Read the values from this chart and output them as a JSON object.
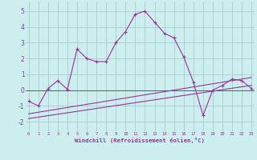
{
  "line1_x": [
    0,
    1,
    2,
    3,
    4,
    5,
    6,
    7,
    8,
    9,
    10,
    11,
    12,
    13,
    14,
    15,
    16,
    17,
    18,
    19,
    20,
    21,
    22,
    23
  ],
  "line1_y": [
    -0.7,
    -1.0,
    0.1,
    0.6,
    0.05,
    2.6,
    2.0,
    1.8,
    1.8,
    3.0,
    3.7,
    4.8,
    5.0,
    4.3,
    3.6,
    3.3,
    2.1,
    0.5,
    -1.6,
    0.0,
    0.3,
    0.7,
    0.6,
    0.1
  ],
  "line2_x": [
    0,
    23
  ],
  "line2_y": [
    -1.5,
    0.8
  ],
  "line3_x": [
    0,
    23
  ],
  "line3_y": [
    -1.8,
    0.3
  ],
  "color": "#993399",
  "bg_color": "#cceeee",
  "grid_color": "#aacccc",
  "xlabel": "Windchill (Refroidissement éolien,°C)",
  "xtick_labels": [
    "0",
    "1",
    "2",
    "3",
    "4",
    "5",
    "6",
    "7",
    "8",
    "9",
    "10",
    "11",
    "12",
    "13",
    "14",
    "15",
    "16",
    "17",
    "18",
    "19",
    "20",
    "21",
    "22",
    "23"
  ],
  "ytick_labels": [
    "-2",
    "-1",
    "0",
    "1",
    "2",
    "3",
    "4",
    "5"
  ],
  "ytick_vals": [
    -2,
    -1,
    0,
    1,
    2,
    3,
    4,
    5
  ],
  "ylim": [
    -2.6,
    5.6
  ],
  "xlim": [
    -0.3,
    23.3
  ]
}
